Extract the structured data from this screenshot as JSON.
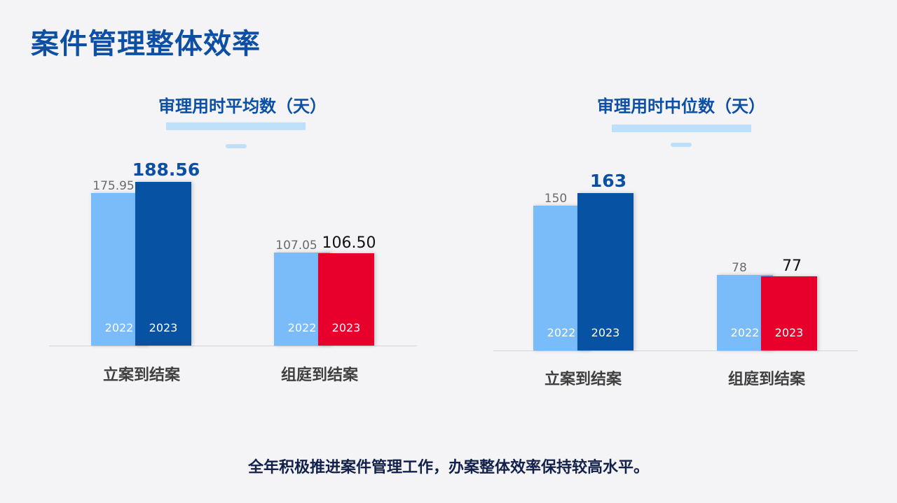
{
  "page": {
    "title": "案件管理整体效率",
    "footer": "全年积极推进案件管理工作，办案整体效率保持较高水平。"
  },
  "colors": {
    "title_blue": "#0d4fa3",
    "year_2022_bar": "#7abbf9",
    "year_2023_bar": "#0752a3",
    "year_2023_highlight_bar": "#e8002c",
    "underline": "#bfe0fb"
  },
  "chart_data": [
    {
      "type": "bar",
      "title": "审理用时平均数（天）",
      "categories": [
        "立案到结案",
        "组庭到结案"
      ],
      "series": [
        {
          "name": "2022",
          "values": [
            175.95,
            107.05
          ],
          "value_labels": [
            "175.95",
            "107.05"
          ],
          "colors": [
            "#7abbf9",
            "#7abbf9"
          ]
        },
        {
          "name": "2023",
          "values": [
            188.56,
            106.5
          ],
          "value_labels": [
            "188.56",
            "106.50"
          ],
          "colors": [
            "#0752a3",
            "#e8002c"
          ]
        }
      ],
      "ylim": [
        0,
        200
      ],
      "grid": false,
      "legend": "none"
    },
    {
      "type": "bar",
      "title": "审理用时中位数（天）",
      "categories": [
        "立案到结案",
        "组庭到结案"
      ],
      "series": [
        {
          "name": "2022",
          "values": [
            150,
            78
          ],
          "value_labels": [
            "150",
            "78"
          ],
          "colors": [
            "#7abbf9",
            "#7abbf9"
          ]
        },
        {
          "name": "2023",
          "values": [
            163,
            77
          ],
          "value_labels": [
            "163",
            "77"
          ],
          "colors": [
            "#0752a3",
            "#e8002c"
          ]
        }
      ],
      "ylim": [
        0,
        200
      ],
      "grid": false,
      "legend": "none"
    }
  ]
}
